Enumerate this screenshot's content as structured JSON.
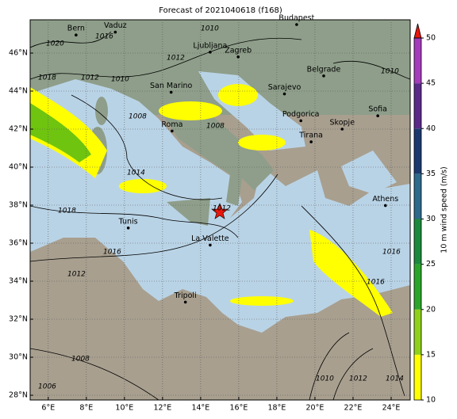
{
  "title": "Forecast of 2021040618 (f168)",
  "map": {
    "xlim": [
      5.05,
      25
    ],
    "ylim": [
      27.75,
      47.75
    ],
    "xticks": [
      {
        "value": 6,
        "label": "6°E"
      },
      {
        "value": 8,
        "label": "8°E"
      },
      {
        "value": 10,
        "label": "10°E"
      },
      {
        "value": 12,
        "label": "12°E"
      },
      {
        "value": 14,
        "label": "14°E"
      },
      {
        "value": 16,
        "label": "16°E"
      },
      {
        "value": 18,
        "label": "18°E"
      },
      {
        "value": 20,
        "label": "20°E"
      },
      {
        "value": 22,
        "label": "22°E"
      },
      {
        "value": 24,
        "label": "24°E"
      }
    ],
    "yticks": [
      {
        "value": 28,
        "label": "28°N"
      },
      {
        "value": 30,
        "label": "30°N"
      },
      {
        "value": 32,
        "label": "32°N"
      },
      {
        "value": 34,
        "label": "34°N"
      },
      {
        "value": 36,
        "label": "36°N"
      },
      {
        "value": 38,
        "label": "38°N"
      },
      {
        "value": 40,
        "label": "40°N"
      },
      {
        "value": 42,
        "label": "42°N"
      },
      {
        "value": 44,
        "label": "44°N"
      },
      {
        "value": 46,
        "label": "46°N"
      }
    ],
    "grid": true,
    "cities": [
      {
        "name": "Bern",
        "lon": 7.46,
        "lat": 46.95
      },
      {
        "name": "Vaduz",
        "lon": 9.52,
        "lat": 47.1
      },
      {
        "name": "Budapest",
        "lon": 19.04,
        "lat": 47.5
      },
      {
        "name": "Ljubljana",
        "lon": 14.5,
        "lat": 46.05
      },
      {
        "name": "Zagreb",
        "lon": 15.97,
        "lat": 45.8
      },
      {
        "name": "San Marino",
        "lon": 12.45,
        "lat": 43.94
      },
      {
        "name": "Belgrade",
        "lon": 20.46,
        "lat": 44.8
      },
      {
        "name": "Sarajevo",
        "lon": 18.4,
        "lat": 43.85
      },
      {
        "name": "Podgorica",
        "lon": 19.26,
        "lat": 42.44
      },
      {
        "name": "Skopje",
        "lon": 21.43,
        "lat": 42.0
      },
      {
        "name": "Sofia",
        "lon": 23.3,
        "lat": 42.7
      },
      {
        "name": "Roma",
        "lon": 12.5,
        "lat": 41.9
      },
      {
        "name": "Tirana",
        "lon": 19.8,
        "lat": 41.33
      },
      {
        "name": "Athens",
        "lon": 23.7,
        "lat": 37.98
      },
      {
        "name": "Tunis",
        "lon": 10.2,
        "lat": 36.8
      },
      {
        "name": "La Valette",
        "lon": 14.5,
        "lat": 35.9
      },
      {
        "name": "Tripoli",
        "lon": 13.2,
        "lat": 32.9
      }
    ],
    "isobar_labels": [
      "1020",
      "1016",
      "1018",
      "1012",
      "1010",
      "1012",
      "1010",
      "1008",
      "1008",
      "1014",
      "1018",
      "1016",
      "1012",
      "1016",
      "1016",
      "1008",
      "1010",
      "1012",
      "1014",
      "1006",
      "1010",
      "1012"
    ]
  },
  "colorbar": {
    "label": "10 m wind speed (m/s)",
    "lim": [
      10,
      50
    ],
    "ticks": [
      10,
      15,
      20,
      25,
      30,
      35,
      40,
      45,
      50
    ],
    "colors": [
      "#ffff00",
      "#8fd11a",
      "#2aa52a",
      "#1c8a3c",
      "#2d6a8c",
      "#1d3a6e",
      "#5a2a8a",
      "#a43cbc"
    ],
    "extend_color": "#e8160c"
  }
}
